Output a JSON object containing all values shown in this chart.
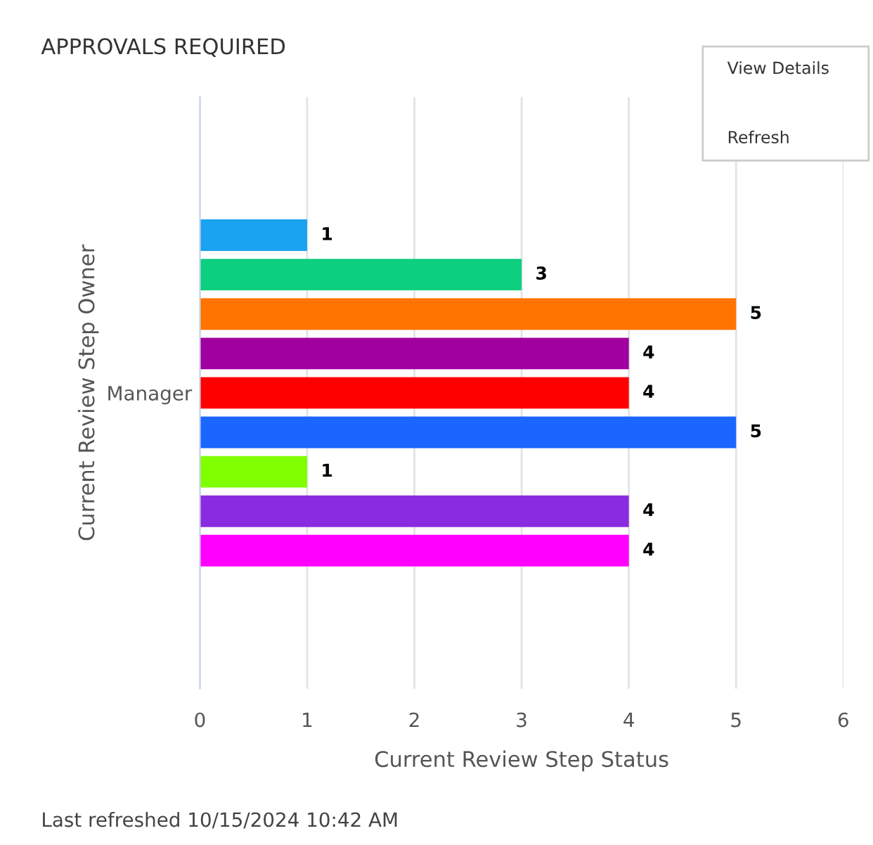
{
  "chart_data": {
    "type": "bar",
    "orientation": "horizontal",
    "title": "APPROVALS REQUIRED",
    "xlabel": "Current Review Step Status",
    "ylabel": "Current Review Step Owner",
    "categories": [
      "Manager"
    ],
    "series": [
      {
        "color": "#1aa3f0",
        "values": [
          1
        ]
      },
      {
        "color": "#0ccf7f",
        "values": [
          3
        ]
      },
      {
        "color": "#ff7300",
        "values": [
          5
        ]
      },
      {
        "color": "#a000a0",
        "values": [
          4
        ]
      },
      {
        "color": "#ff0000",
        "values": [
          4
        ]
      },
      {
        "color": "#1a66ff",
        "values": [
          5
        ]
      },
      {
        "color": "#80ff00",
        "values": [
          1
        ]
      },
      {
        "color": "#8a2be2",
        "values": [
          4
        ]
      },
      {
        "color": "#ff00ff",
        "values": [
          4
        ]
      }
    ],
    "xlim": [
      0,
      6
    ],
    "xticks": [
      0,
      1,
      2,
      3,
      4,
      5,
      6
    ],
    "grid": "x",
    "data_labels": true,
    "legend": false,
    "annotations": [
      "Last refreshed 10/15/2024 10:42 AM",
      "View Details",
      "Refresh"
    ]
  }
}
